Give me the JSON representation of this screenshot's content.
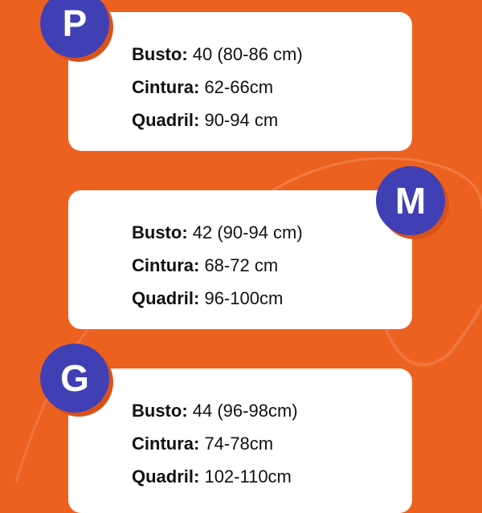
{
  "colors": {
    "background": "#ED6120",
    "badge": "#4040B4",
    "card": "#FFFFFF"
  },
  "sizes": [
    {
      "badge": "P",
      "rows": [
        {
          "label": "Busto:",
          "value": " 40 (80-86 cm)"
        },
        {
          "label": "Cintura:",
          "value": " 62-66cm"
        },
        {
          "label": "Quadril:",
          "value": " 90-94 cm"
        }
      ]
    },
    {
      "badge": "M",
      "rows": [
        {
          "label": "Busto:",
          "value": " 42 (90-94 cm)"
        },
        {
          "label": "Cintura:",
          "value": " 68-72 cm"
        },
        {
          "label": "Quadril:",
          "value": " 96-100cm"
        }
      ]
    },
    {
      "badge": "G",
      "rows": [
        {
          "label": "Busto:",
          "value": " 44 (96-98cm)"
        },
        {
          "label": "Cintura:",
          "value": " 74-78cm"
        },
        {
          "label": "Quadril:",
          "value": " 102-110cm"
        }
      ]
    }
  ]
}
